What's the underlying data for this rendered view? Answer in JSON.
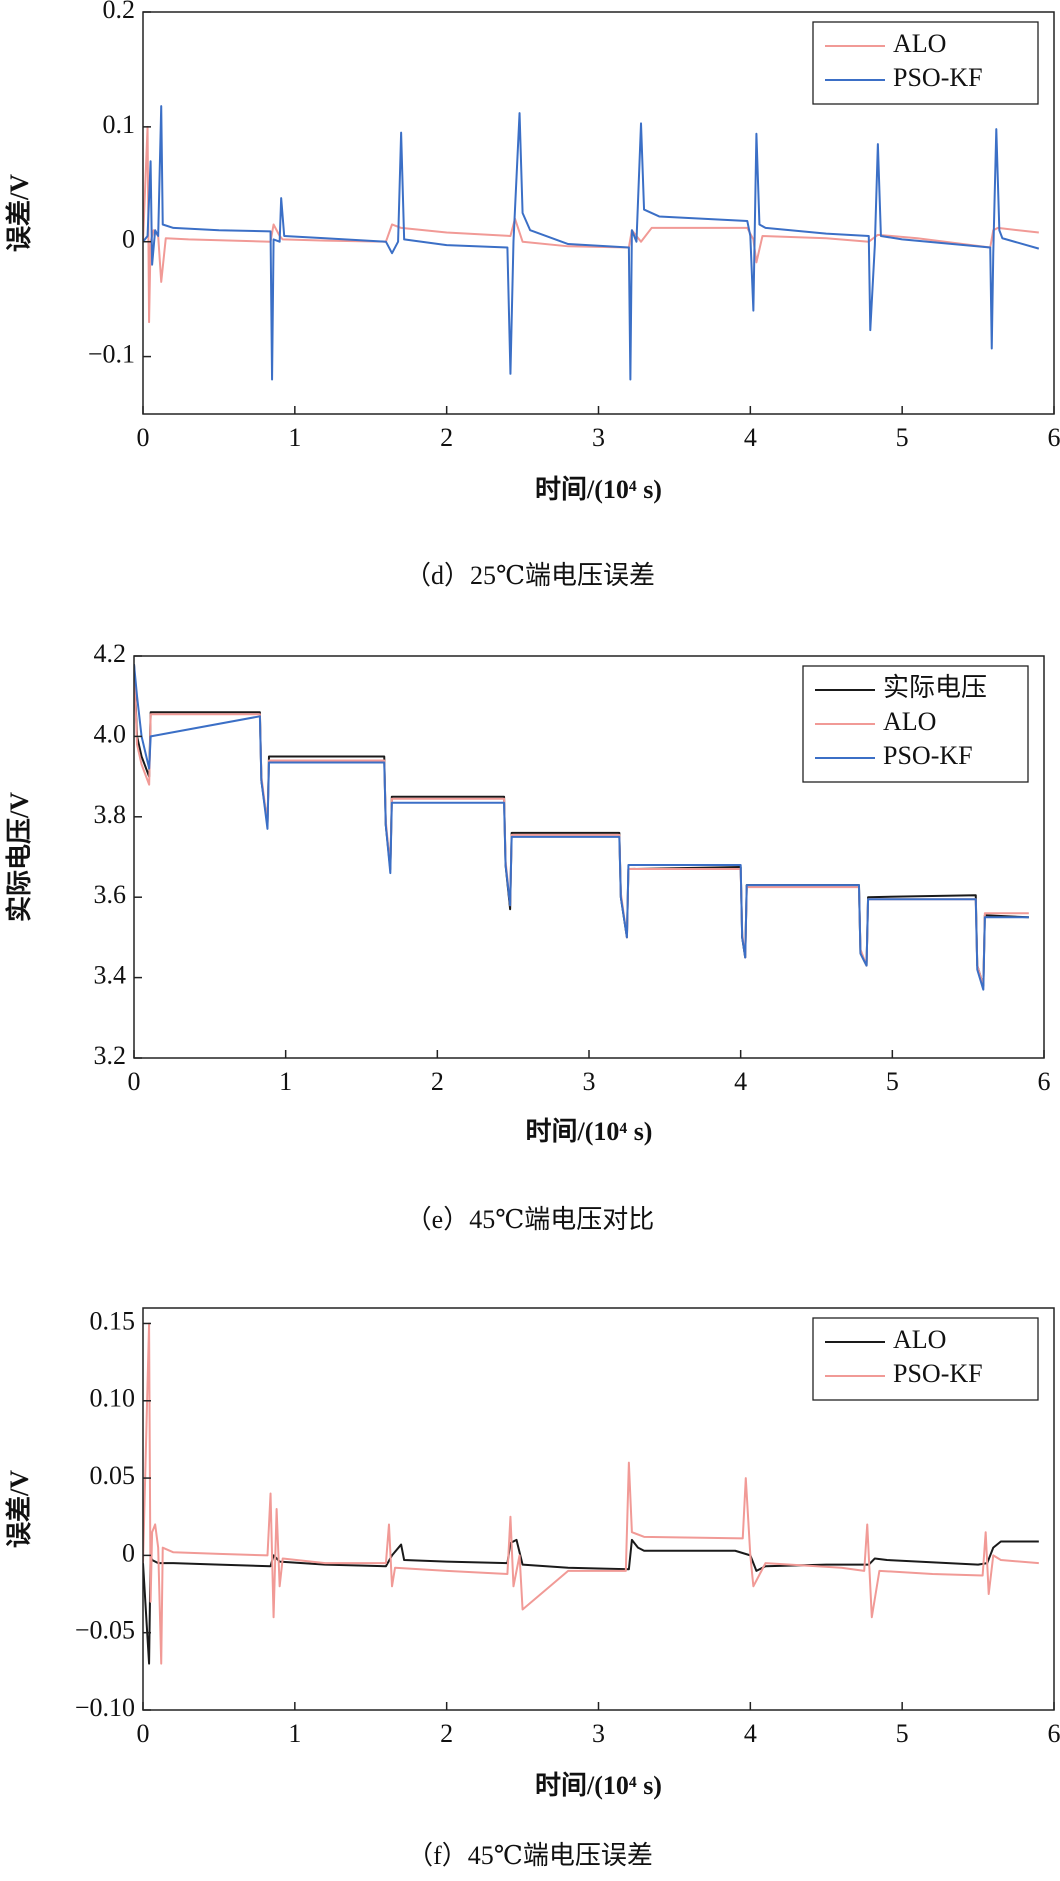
{
  "chart_data": [
    {
      "type": "line",
      "caption": "（d）25℃端电压误差",
      "xlabel": "时间/(10⁴ s)",
      "ylabel": "误差/V",
      "xlim": [
        0,
        6
      ],
      "xticks": [
        0,
        1,
        2,
        3,
        4,
        5,
        6
      ],
      "ylim": [
        -0.15,
        0.2
      ],
      "yticks": [
        {
          "value": -0.1,
          "label": "−0.1"
        },
        0,
        0.1,
        0.2
      ],
      "legend": "upper right",
      "series": [
        {
          "name": "ALO",
          "color": "#f19a96",
          "x": [
            0,
            0.03,
            0.04,
            0.05,
            0.07,
            0.1,
            0.12,
            0.15,
            0.3,
            0.84,
            0.86,
            0.9,
            0.92,
            1.2,
            1.6,
            1.64,
            1.7,
            2.0,
            2.42,
            2.45,
            2.5,
            2.8,
            3.2,
            3.22,
            3.28,
            3.35,
            3.98,
            4.02,
            4.04,
            4.08,
            4.5,
            4.78,
            4.84,
            5.1,
            5.58,
            5.6,
            5.63,
            5.9
          ],
          "values": [
            0,
            0.1,
            -0.07,
            0.0,
            0.01,
            0.005,
            -0.035,
            0.003,
            0.002,
            0.0,
            0.015,
            0.005,
            0.002,
            0.001,
            0.0,
            0.015,
            0.012,
            0.008,
            0.005,
            0.02,
            0.0,
            -0.004,
            -0.005,
            0.01,
            0.0,
            0.012,
            0.012,
            0.002,
            -0.018,
            0.005,
            0.003,
            0.0,
            0.006,
            0.003,
            -0.005,
            0.01,
            0.012,
            0.008
          ]
        },
        {
          "name": "PSO-KF",
          "color": "#3b6fc6",
          "x": [
            0,
            0.03,
            0.05,
            0.06,
            0.08,
            0.1,
            0.12,
            0.13,
            0.2,
            0.5,
            0.84,
            0.85,
            0.86,
            0.9,
            0.91,
            0.93,
            1.2,
            1.6,
            1.64,
            1.68,
            1.7,
            1.72,
            2.0,
            2.4,
            2.42,
            2.44,
            2.48,
            2.5,
            2.55,
            2.8,
            3.2,
            3.21,
            3.22,
            3.25,
            3.28,
            3.3,
            3.4,
            3.98,
            4.0,
            4.02,
            4.04,
            4.06,
            4.1,
            4.5,
            4.78,
            4.79,
            4.82,
            4.84,
            4.86,
            5.0,
            5.58,
            5.59,
            5.6,
            5.62,
            5.64,
            5.66,
            5.9
          ],
          "values": [
            0,
            0.005,
            0.07,
            -0.02,
            0.01,
            0.005,
            0.118,
            0.015,
            0.012,
            0.01,
            0.009,
            -0.12,
            0.002,
            0.0,
            0.038,
            0.005,
            0.003,
            0.0,
            -0.01,
            0.0,
            0.095,
            0.002,
            -0.003,
            -0.005,
            -0.115,
            0.0,
            0.112,
            0.025,
            0.01,
            -0.002,
            -0.005,
            -0.12,
            0.01,
            0.0,
            0.103,
            0.028,
            0.022,
            0.018,
            0.005,
            -0.06,
            0.094,
            0.015,
            0.012,
            0.007,
            0.005,
            -0.077,
            -0.003,
            0.085,
            0.005,
            0.002,
            -0.005,
            -0.093,
            -0.01,
            0.098,
            0.01,
            0.003,
            -0.006
          ]
        }
      ]
    },
    {
      "type": "line",
      "caption": "（e）45℃端电压对比",
      "xlabel": "时间/(10⁴ s)",
      "ylabel": "实际电压/V",
      "xlim": [
        0,
        6
      ],
      "xticks": [
        0,
        1,
        2,
        3,
        4,
        5,
        6
      ],
      "ylim": [
        3.2,
        4.2
      ],
      "yticks": [
        3.2,
        3.4,
        3.6,
        3.8,
        {
          "value": 4,
          "label": "4.0"
        },
        4.2
      ],
      "legend": "upper right",
      "x": [
        0,
        0.02,
        0.05,
        0.1,
        0.11,
        0.83,
        0.84,
        0.88,
        0.89,
        1.65,
        1.66,
        1.69,
        1.7,
        2.44,
        2.45,
        2.48,
        2.49,
        3.2,
        3.21,
        3.25,
        3.26,
        4.0,
        4.01,
        4.03,
        4.04,
        4.78,
        4.79,
        4.83,
        4.84,
        5.55,
        5.56,
        5.6,
        5.61,
        5.9
      ],
      "series": [
        {
          "name": "实际电压",
          "color": "#1a1a1a",
          "values": [
            4.18,
            4.0,
            3.95,
            3.9,
            4.06,
            4.06,
            3.89,
            3.78,
            3.95,
            3.95,
            3.78,
            3.67,
            3.85,
            3.85,
            3.68,
            3.57,
            3.76,
            3.76,
            3.6,
            3.5,
            3.67,
            3.675,
            3.5,
            3.45,
            3.63,
            3.63,
            3.46,
            3.43,
            3.6,
            3.605,
            3.43,
            3.38,
            3.555,
            3.55
          ]
        },
        {
          "name": "ALO",
          "color": "#f19a96",
          "values": [
            4.18,
            3.98,
            3.93,
            3.88,
            4.055,
            4.055,
            3.9,
            3.78,
            3.94,
            3.94,
            3.79,
            3.67,
            3.845,
            3.845,
            3.69,
            3.58,
            3.755,
            3.755,
            3.61,
            3.5,
            3.67,
            3.67,
            3.51,
            3.45,
            3.625,
            3.625,
            3.47,
            3.43,
            3.595,
            3.595,
            3.43,
            3.38,
            3.56,
            3.56
          ]
        },
        {
          "name": "PSO-KF",
          "color": "#3b6fc6",
          "values": [
            4.18,
            4.1,
            4.0,
            3.92,
            4.0,
            4.05,
            3.89,
            3.77,
            3.935,
            3.935,
            3.78,
            3.66,
            3.835,
            3.835,
            3.68,
            3.58,
            3.75,
            3.75,
            3.6,
            3.5,
            3.68,
            3.68,
            3.5,
            3.45,
            3.63,
            3.63,
            3.46,
            3.43,
            3.595,
            3.595,
            3.42,
            3.37,
            3.55,
            3.55
          ]
        }
      ]
    },
    {
      "type": "line",
      "caption": "（f）45℃端电压误差",
      "xlabel": "时间/(10⁴ s)",
      "ylabel": "误差/V",
      "xlim": [
        0,
        6
      ],
      "xticks": [
        0,
        1,
        2,
        3,
        4,
        5,
        6
      ],
      "ylim": [
        -0.1,
        0.16
      ],
      "yticks": [
        {
          "value": -0.1,
          "label": "−0.10"
        },
        {
          "value": -0.05,
          "label": "−0.05"
        },
        0,
        0.05,
        {
          "value": 0.1,
          "label": "0.10"
        },
        0.15
      ],
      "legend": "upper right",
      "series": [
        {
          "name": "ALO",
          "color": "#1a1a1a",
          "x": [
            0,
            0.04,
            0.05,
            0.06,
            0.1,
            0.2,
            0.5,
            0.84,
            0.86,
            0.9,
            1.2,
            1.6,
            1.64,
            1.7,
            1.72,
            2.0,
            2.4,
            2.42,
            2.46,
            2.5,
            2.8,
            3.2,
            3.22,
            3.26,
            3.3,
            3.9,
            4.0,
            4.04,
            4.1,
            4.5,
            4.78,
            4.82,
            4.9,
            5.5,
            5.56,
            5.6,
            5.65,
            5.9
          ],
          "values": [
            -0.005,
            -0.07,
            0.0,
            -0.003,
            -0.005,
            -0.005,
            -0.006,
            -0.007,
            0.0,
            -0.004,
            -0.006,
            -0.007,
            0.0,
            0.007,
            -0.003,
            -0.004,
            -0.005,
            0.008,
            0.01,
            -0.006,
            -0.008,
            -0.009,
            0.01,
            0.005,
            0.003,
            0.003,
            0.0,
            -0.01,
            -0.007,
            -0.006,
            -0.006,
            -0.002,
            -0.003,
            -0.006,
            -0.005,
            0.005,
            0.009,
            0.009
          ]
        },
        {
          "name": "PSO-KF",
          "color": "#f19a96",
          "x": [
            0,
            0.04,
            0.05,
            0.06,
            0.08,
            0.1,
            0.12,
            0.13,
            0.2,
            0.5,
            0.82,
            0.84,
            0.86,
            0.88,
            0.9,
            0.92,
            1.2,
            1.6,
            1.62,
            1.64,
            1.66,
            2.0,
            2.4,
            2.42,
            2.44,
            2.48,
            2.5,
            2.8,
            3.18,
            3.2,
            3.22,
            3.3,
            3.95,
            3.97,
            4.0,
            4.02,
            4.1,
            4.6,
            4.75,
            4.77,
            4.8,
            4.85,
            5.2,
            5.53,
            5.55,
            5.57,
            5.6,
            5.65,
            5.9
          ],
          "values": [
            -0.005,
            0.15,
            -0.03,
            0.015,
            0.02,
            0.005,
            -0.07,
            0.005,
            0.002,
            0.001,
            0.0,
            0.04,
            -0.04,
            0.03,
            -0.02,
            -0.002,
            -0.005,
            -0.005,
            0.02,
            -0.02,
            -0.008,
            -0.01,
            -0.012,
            0.025,
            -0.02,
            0.0,
            -0.035,
            -0.01,
            -0.01,
            0.06,
            0.015,
            0.012,
            0.011,
            0.05,
            0.0,
            -0.02,
            -0.005,
            -0.008,
            -0.01,
            0.02,
            -0.04,
            -0.01,
            -0.012,
            -0.013,
            0.015,
            -0.025,
            0.0,
            -0.003,
            -0.005
          ]
        }
      ]
    }
  ]
}
